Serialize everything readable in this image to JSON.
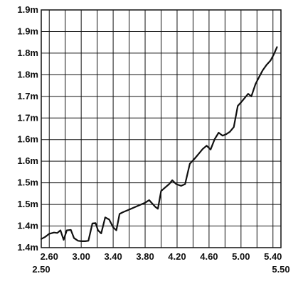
{
  "chart_data": {
    "type": "line",
    "xlim": [
      2.5,
      5.5
    ],
    "ylim": [
      1.35,
      1.9
    ],
    "x_ticks": [
      2.6,
      2.8,
      3.0,
      3.2,
      3.4,
      3.6,
      3.8,
      4.0,
      4.2,
      4.4,
      4.6,
      4.8,
      5.0,
      5.2,
      5.4
    ],
    "x_tick_labels": [
      {
        "value": 2.6,
        "label": "2.60"
      },
      {
        "value": 3.0,
        "label": "3.00"
      },
      {
        "value": 3.4,
        "label": "3.40"
      },
      {
        "value": 3.8,
        "label": "3.80"
      },
      {
        "value": 4.2,
        "label": "4.20"
      },
      {
        "value": 4.6,
        "label": "4.60"
      },
      {
        "value": 5.0,
        "label": "5.00"
      },
      {
        "value": 5.4,
        "label": "5.40"
      }
    ],
    "x_range_labels": [
      {
        "value": 2.5,
        "label": "2.50"
      },
      {
        "value": 5.5,
        "label": "5.50"
      }
    ],
    "y_ticks": [
      1.35,
      1.4,
      1.45,
      1.5,
      1.55,
      1.6,
      1.65,
      1.7,
      1.75,
      1.8,
      1.85,
      1.9
    ],
    "y_tick_labels": [
      "1.4m",
      "1.4m",
      "1.5m",
      "1.5m",
      "1.6m",
      "1.6m",
      "1.7m",
      "1.7m",
      "1.8m",
      "1.8m",
      "1.9m"
    ],
    "grid": true,
    "series": [
      {
        "color": "#111111",
        "points": [
          [
            2.5,
            1.37
          ],
          [
            2.55,
            1.375
          ],
          [
            2.6,
            1.382
          ],
          [
            2.66,
            1.385
          ],
          [
            2.7,
            1.384
          ],
          [
            2.74,
            1.39
          ],
          [
            2.78,
            1.368
          ],
          [
            2.82,
            1.39
          ],
          [
            2.87,
            1.391
          ],
          [
            2.91,
            1.372
          ],
          [
            2.96,
            1.366
          ],
          [
            3.0,
            1.365
          ],
          [
            3.05,
            1.365
          ],
          [
            3.09,
            1.366
          ],
          [
            3.14,
            1.406
          ],
          [
            3.18,
            1.407
          ],
          [
            3.21,
            1.39
          ],
          [
            3.25,
            1.383
          ],
          [
            3.3,
            1.42
          ],
          [
            3.35,
            1.415
          ],
          [
            3.4,
            1.397
          ],
          [
            3.44,
            1.39
          ],
          [
            3.48,
            1.428
          ],
          [
            3.52,
            1.432
          ],
          [
            3.6,
            1.438
          ],
          [
            3.7,
            1.446
          ],
          [
            3.8,
            1.454
          ],
          [
            3.85,
            1.46
          ],
          [
            3.89,
            1.452
          ],
          [
            3.93,
            1.444
          ],
          [
            3.96,
            1.44
          ],
          [
            4.0,
            1.481
          ],
          [
            4.05,
            1.489
          ],
          [
            4.1,
            1.497
          ],
          [
            4.14,
            1.506
          ],
          [
            4.19,
            1.497
          ],
          [
            4.25,
            1.493
          ],
          [
            4.3,
            1.497
          ],
          [
            4.36,
            1.544
          ],
          [
            4.42,
            1.556
          ],
          [
            4.47,
            1.567
          ],
          [
            4.52,
            1.578
          ],
          [
            4.57,
            1.586
          ],
          [
            4.62,
            1.577
          ],
          [
            4.67,
            1.601
          ],
          [
            4.72,
            1.616
          ],
          [
            4.77,
            1.609
          ],
          [
            4.81,
            1.612
          ],
          [
            4.86,
            1.618
          ],
          [
            4.91,
            1.629
          ],
          [
            4.96,
            1.678
          ],
          [
            5.0,
            1.686
          ],
          [
            5.04,
            1.695
          ],
          [
            5.09,
            1.706
          ],
          [
            5.13,
            1.7
          ],
          [
            5.18,
            1.728
          ],
          [
            5.23,
            1.746
          ],
          [
            5.27,
            1.76
          ],
          [
            5.32,
            1.773
          ],
          [
            5.37,
            1.783
          ],
          [
            5.41,
            1.797
          ],
          [
            5.45,
            1.814
          ]
        ]
      }
    ]
  }
}
